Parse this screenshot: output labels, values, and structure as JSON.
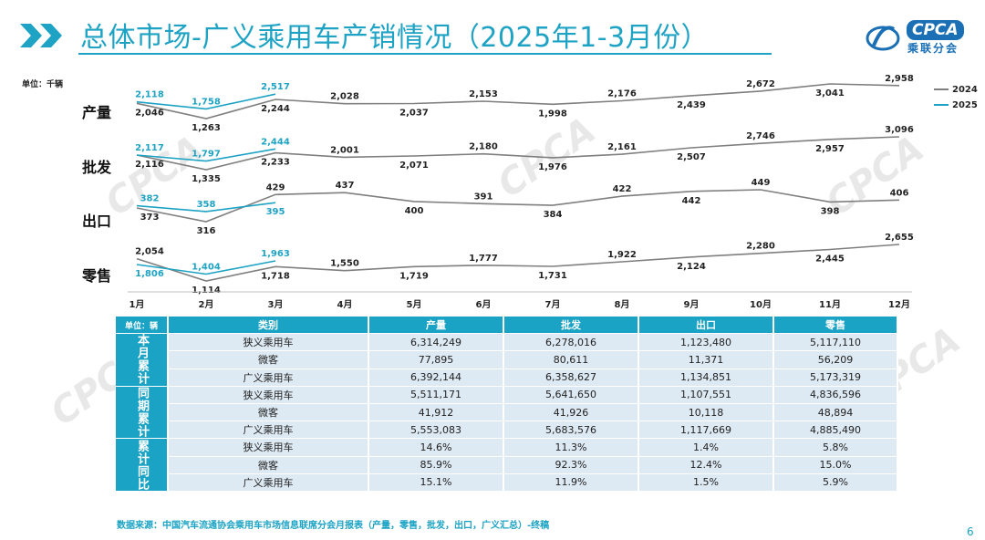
{
  "header": {
    "title": "总体市场-广义乘用车产销情况（2025年1-3月份）",
    "logo_text": "CPCA",
    "logo_sub": "乘联分会"
  },
  "unit_label": "单位：千辆",
  "colors": {
    "series_2024": "#7f7f7f",
    "series_2025": "#1ea3c4",
    "accent": "#1aa3c4"
  },
  "chart_data": {
    "type": "line",
    "months": [
      "1月",
      "2月",
      "3月",
      "4月",
      "5月",
      "6月",
      "7月",
      "8月",
      "9月",
      "10月",
      "11月",
      "12月"
    ],
    "legend": [
      "2024",
      "2025"
    ],
    "panels": [
      {
        "label": "产量",
        "series": [
          {
            "name": "2024",
            "values": [
              2046,
              1263,
              2244,
              2028,
              2037,
              2153,
              1998,
              2176,
              2439,
              2672,
              3041,
              2958
            ]
          },
          {
            "name": "2025",
            "values": [
              2118,
              1758,
              2517
            ]
          }
        ]
      },
      {
        "label": "批发",
        "series": [
          {
            "name": "2024",
            "values": [
              2116,
              1335,
              2233,
              2001,
              2071,
              2180,
              1976,
              2161,
              2507,
              2746,
              2957,
              3096
            ]
          },
          {
            "name": "2025",
            "values": [
              2117,
              1797,
              2444
            ]
          }
        ]
      },
      {
        "label": "出口",
        "series": [
          {
            "name": "2024",
            "values": [
              373,
              316,
              429,
              437,
              400,
              391,
              384,
              422,
              442,
              449,
              398,
              406
            ]
          },
          {
            "name": "2025",
            "values": [
              382,
              358,
              395
            ]
          }
        ]
      },
      {
        "label": "零售",
        "series": [
          {
            "name": "2024",
            "values": [
              2054,
              1114,
              1718,
              1550,
              1719,
              1777,
              1731,
              1922,
              2124,
              2280,
              2445,
              2655
            ]
          },
          {
            "name": "2025",
            "values": [
              1806,
              1404,
              1963
            ]
          }
        ]
      }
    ]
  },
  "table": {
    "unit": "单位：辆",
    "headers": [
      "类别",
      "产量",
      "批发",
      "出口",
      "零售"
    ],
    "groups": [
      {
        "name": "本月累计",
        "rows": [
          [
            "狭义乘用车",
            "6,314,249",
            "6,278,016",
            "1,123,480",
            "5,117,110"
          ],
          [
            "微客",
            "77,895",
            "80,611",
            "11,371",
            "56,209"
          ],
          [
            "广义乘用车",
            "6,392,144",
            "6,358,627",
            "1,134,851",
            "5,173,319"
          ]
        ]
      },
      {
        "name": "同期累计",
        "rows": [
          [
            "狭义乘用车",
            "5,511,171",
            "5,641,650",
            "1,107,551",
            "4,836,596"
          ],
          [
            "微客",
            "41,912",
            "41,926",
            "10,118",
            "48,894"
          ],
          [
            "广义乘用车",
            "5,553,083",
            "5,683,576",
            "1,117,669",
            "4,885,490"
          ]
        ]
      },
      {
        "name": "累计同比",
        "rows": [
          [
            "狭义乘用车",
            "14.6%",
            "11.3%",
            "1.4%",
            "5.8%"
          ],
          [
            "微客",
            "85.9%",
            "92.3%",
            "12.4%",
            "15.0%"
          ],
          [
            "广义乘用车",
            "15.1%",
            "11.9%",
            "1.5%",
            "5.9%"
          ]
        ]
      }
    ]
  },
  "source": "数据来源：中国汽车流通协会乘用车市场信息联席分会月报表（产量，零售，批发，出口，广义汇总）-终稿",
  "page_number": "6"
}
